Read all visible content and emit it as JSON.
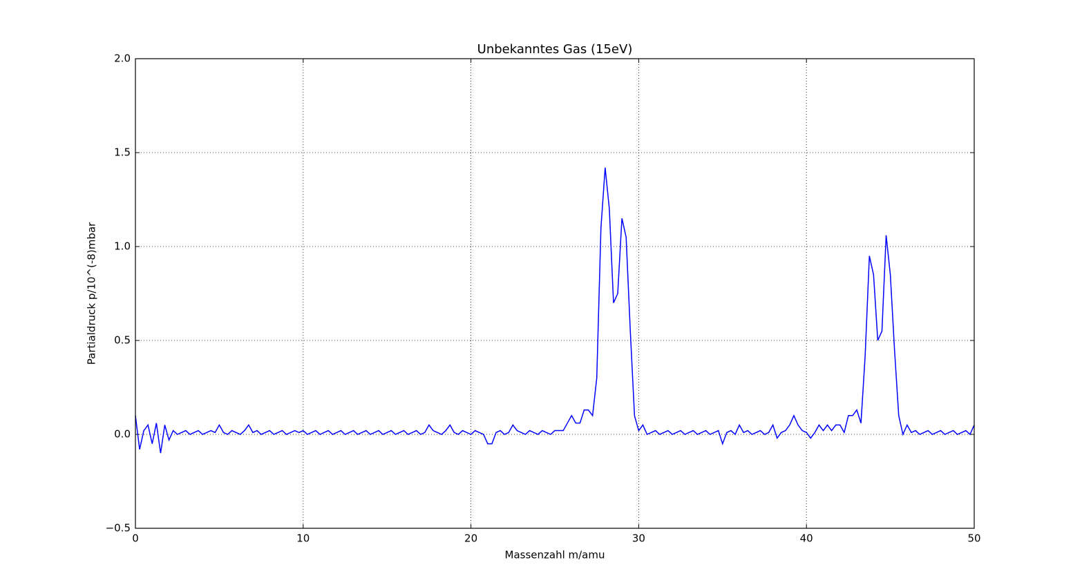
{
  "chart_data": {
    "type": "line",
    "title": "Unbekanntes Gas (15eV)",
    "xlabel": "Massenzahl m/amu",
    "ylabel": "Partialdruck p/10^(-8)mbar",
    "x": [
      0,
      0.25,
      0.5,
      0.75,
      1,
      1.25,
      1.5,
      1.75,
      2,
      2.25,
      2.5,
      2.75,
      3,
      3.25,
      3.5,
      3.75,
      4,
      4.25,
      4.5,
      4.75,
      5,
      5.25,
      5.5,
      5.75,
      6,
      6.25,
      6.5,
      6.75,
      7,
      7.25,
      7.5,
      7.75,
      8,
      8.25,
      8.5,
      8.75,
      9,
      9.25,
      9.5,
      9.75,
      10,
      10.25,
      10.5,
      10.75,
      11,
      11.25,
      11.5,
      11.75,
      12,
      12.25,
      12.5,
      12.75,
      13,
      13.25,
      13.5,
      13.75,
      14,
      14.25,
      14.5,
      14.75,
      15,
      15.25,
      15.5,
      15.75,
      16,
      16.25,
      16.5,
      16.75,
      17,
      17.25,
      17.5,
      17.75,
      18,
      18.25,
      18.5,
      18.75,
      19,
      19.25,
      19.5,
      19.75,
      20,
      20.25,
      20.5,
      20.75,
      21,
      21.25,
      21.5,
      21.75,
      22,
      22.25,
      22.5,
      22.75,
      23,
      23.25,
      23.5,
      23.75,
      24,
      24.25,
      24.5,
      24.75,
      25,
      25.25,
      25.5,
      25.75,
      26,
      26.25,
      26.5,
      26.75,
      27,
      27.25,
      27.5,
      27.75,
      28,
      28.25,
      28.5,
      28.75,
      29,
      29.25,
      29.5,
      29.75,
      30,
      30.25,
      30.5,
      30.75,
      31,
      31.25,
      31.5,
      31.75,
      32,
      32.25,
      32.5,
      32.75,
      33,
      33.25,
      33.5,
      33.75,
      34,
      34.25,
      34.5,
      34.75,
      35,
      35.25,
      35.5,
      35.75,
      36,
      36.25,
      36.5,
      36.75,
      37,
      37.25,
      37.5,
      37.75,
      38,
      38.25,
      38.5,
      38.75,
      39,
      39.25,
      39.5,
      39.75,
      40,
      40.25,
      40.5,
      40.75,
      41,
      41.25,
      41.5,
      41.75,
      42,
      42.25,
      42.5,
      42.75,
      43,
      43.25,
      43.5,
      43.75,
      44,
      44.25,
      44.5,
      44.75,
      45,
      45.25,
      45.5,
      45.75,
      46,
      46.25,
      46.5,
      46.75,
      47,
      47.25,
      47.5,
      47.75,
      48,
      48.25,
      48.5,
      48.75,
      49,
      49.25,
      49.5,
      49.75,
      50
    ],
    "series": [
      {
        "color": "#0000ff",
        "values": [
          0.1,
          -0.08,
          0.02,
          0.05,
          -0.05,
          0.06,
          -0.1,
          0.05,
          -0.03,
          0.02,
          0,
          0.01,
          0.02,
          0,
          0.01,
          0.02,
          0,
          0.01,
          0.02,
          0.01,
          0.05,
          0.01,
          0,
          0.02,
          0.01,
          0,
          0.02,
          0.05,
          0.01,
          0.02,
          0,
          0.01,
          0.02,
          0,
          0.01,
          0.02,
          0,
          0.01,
          0.02,
          0.01,
          0.02,
          0,
          0.01,
          0.02,
          0,
          0.01,
          0.02,
          0,
          0.01,
          0.02,
          0,
          0.01,
          0.02,
          0,
          0.01,
          0.02,
          0,
          0.01,
          0.02,
          0,
          0.01,
          0.02,
          0,
          0.01,
          0.02,
          0,
          0.01,
          0.02,
          0,
          0.01,
          0.05,
          0.02,
          0.01,
          0,
          0.02,
          0.05,
          0.01,
          0,
          0.02,
          0.01,
          0,
          0.02,
          0.01,
          0,
          -0.05,
          -0.05,
          0.01,
          0.02,
          0,
          0.01,
          0.05,
          0.02,
          0.01,
          0,
          0.02,
          0.01,
          0,
          0.02,
          0.01,
          0,
          0.02,
          0.02,
          0.02,
          0.06,
          0.1,
          0.06,
          0.06,
          0.13,
          0.13,
          0.1,
          0.3,
          1.1,
          1.42,
          1.2,
          0.7,
          0.75,
          1.15,
          1.05,
          0.55,
          0.1,
          0.02,
          0.05,
          0,
          0.01,
          0.02,
          0,
          0.01,
          0.02,
          0,
          0.01,
          0.02,
          0,
          0.01,
          0.02,
          0,
          0.01,
          0.02,
          0,
          0.01,
          0.02,
          -0.05,
          0.01,
          0.02,
          0,
          0.05,
          0.01,
          0.02,
          0,
          0.01,
          0.02,
          0,
          0.01,
          0.05,
          -0.02,
          0.01,
          0.02,
          0.05,
          0.1,
          0.05,
          0.02,
          0.01,
          -0.02,
          0.01,
          0.05,
          0.02,
          0.05,
          0.02,
          0.05,
          0.05,
          0.01,
          0.1,
          0.1,
          0.13,
          0.06,
          0.42,
          0.95,
          0.85,
          0.5,
          0.55,
          1.06,
          0.85,
          0.45,
          0.1,
          0,
          0.05,
          0.01,
          0.02,
          0,
          0.01,
          0.02,
          0,
          0.01,
          0.02,
          0,
          0.01,
          0.02,
          0,
          0.01,
          0.02,
          0,
          0.05
        ]
      }
    ],
    "xlim": [
      0,
      50
    ],
    "xticks": [
      0,
      10,
      20,
      30,
      40,
      50
    ],
    "ylim": [
      -0.5,
      2.0
    ],
    "yticks": [
      {
        "value": -0.5,
        "label": "−0.5"
      },
      {
        "value": 0,
        "label": "0.0"
      },
      {
        "value": 0.5,
        "label": "0.5"
      },
      {
        "value": 1,
        "label": "1.0"
      },
      {
        "value": 1.5,
        "label": "1.5"
      },
      {
        "value": 2,
        "label": "2.0"
      }
    ],
    "grid": true
  }
}
